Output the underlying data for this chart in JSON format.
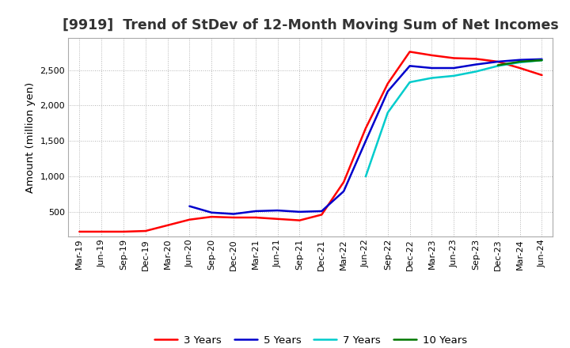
{
  "title": "[9919]  Trend of StDev of 12-Month Moving Sum of Net Incomes",
  "ylabel": "Amount (million yen)",
  "background_color": "#ffffff",
  "grid_color": "#aaaaaa",
  "title_fontsize": 12.5,
  "axis_label_fontsize": 9.5,
  "tick_fontsize": 8,
  "legend_fontsize": 9.5,
  "ylim": [
    150,
    2950
  ],
  "yticks": [
    500,
    1000,
    1500,
    2000,
    2500
  ],
  "series": {
    "3 Years": {
      "color": "#ff0000",
      "values": [
        220,
        220,
        220,
        230,
        310,
        390,
        430,
        420,
        420,
        400,
        380,
        460,
        920,
        1680,
        2310,
        2760,
        2710,
        2670,
        2660,
        2620,
        2530,
        2430
      ]
    },
    "5 Years": {
      "color": "#0000cc",
      "values": [
        null,
        null,
        null,
        null,
        null,
        580,
        490,
        470,
        510,
        520,
        500,
        510,
        790,
        1500,
        2200,
        2560,
        2530,
        2530,
        2580,
        2620,
        2645,
        2655
      ]
    },
    "7 Years": {
      "color": "#00cccc",
      "values": [
        null,
        null,
        null,
        null,
        null,
        null,
        null,
        null,
        null,
        null,
        null,
        null,
        null,
        1000,
        1900,
        2330,
        2390,
        2420,
        2480,
        2560,
        2610,
        2640
      ]
    },
    "10 Years": {
      "color": "#007700",
      "values": [
        null,
        null,
        null,
        null,
        null,
        null,
        null,
        null,
        null,
        null,
        null,
        null,
        null,
        null,
        null,
        null,
        null,
        null,
        null,
        2570,
        2620,
        2640
      ]
    }
  },
  "xtick_labels": [
    "Mar-19",
    "Jun-19",
    "Sep-19",
    "Dec-19",
    "Mar-20",
    "Jun-20",
    "Sep-20",
    "Dec-20",
    "Mar-21",
    "Jun-21",
    "Sep-21",
    "Dec-21",
    "Mar-22",
    "Jun-22",
    "Sep-22",
    "Dec-22",
    "Mar-23",
    "Jun-23",
    "Sep-23",
    "Dec-23",
    "Mar-24",
    "Jun-24"
  ]
}
